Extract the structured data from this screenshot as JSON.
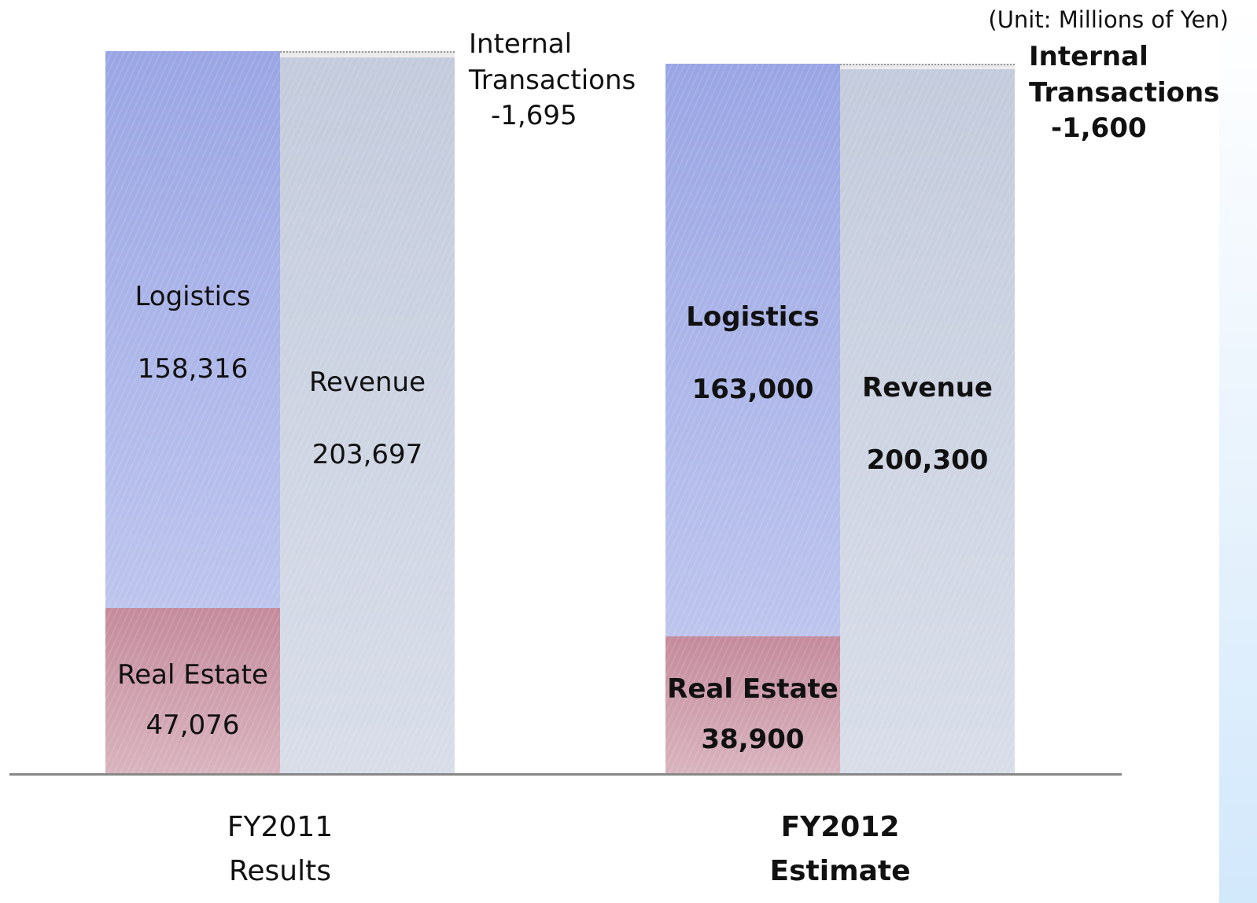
{
  "chart_data": {
    "type": "bar",
    "subtitle": "(Unit: Millions of Yen)",
    "categories": [
      "FY2011 Results",
      "FY2012 Estimate"
    ],
    "series": [
      {
        "name": "Real Estate",
        "stack": "segments",
        "color": "#c48b9c",
        "values": [
          47076,
          38900
        ],
        "value_labels": [
          "47,076",
          "38,900"
        ]
      },
      {
        "name": "Logistics",
        "stack": "segments",
        "color": "#9aa6e4",
        "values": [
          158316,
          163000
        ],
        "value_labels": [
          "158,316",
          "163,000"
        ]
      },
      {
        "name": "Revenue",
        "stack": "total",
        "color": "#c3cbdc",
        "values": [
          203697,
          200300
        ],
        "value_labels": [
          "203,697",
          "200,300"
        ]
      },
      {
        "name": "Internal Transactions",
        "stack": "total",
        "color": "#e6e6e6",
        "values": [
          -1695,
          -1600
        ],
        "value_labels": [
          "-1,695",
          "-1,600"
        ]
      }
    ]
  }
}
